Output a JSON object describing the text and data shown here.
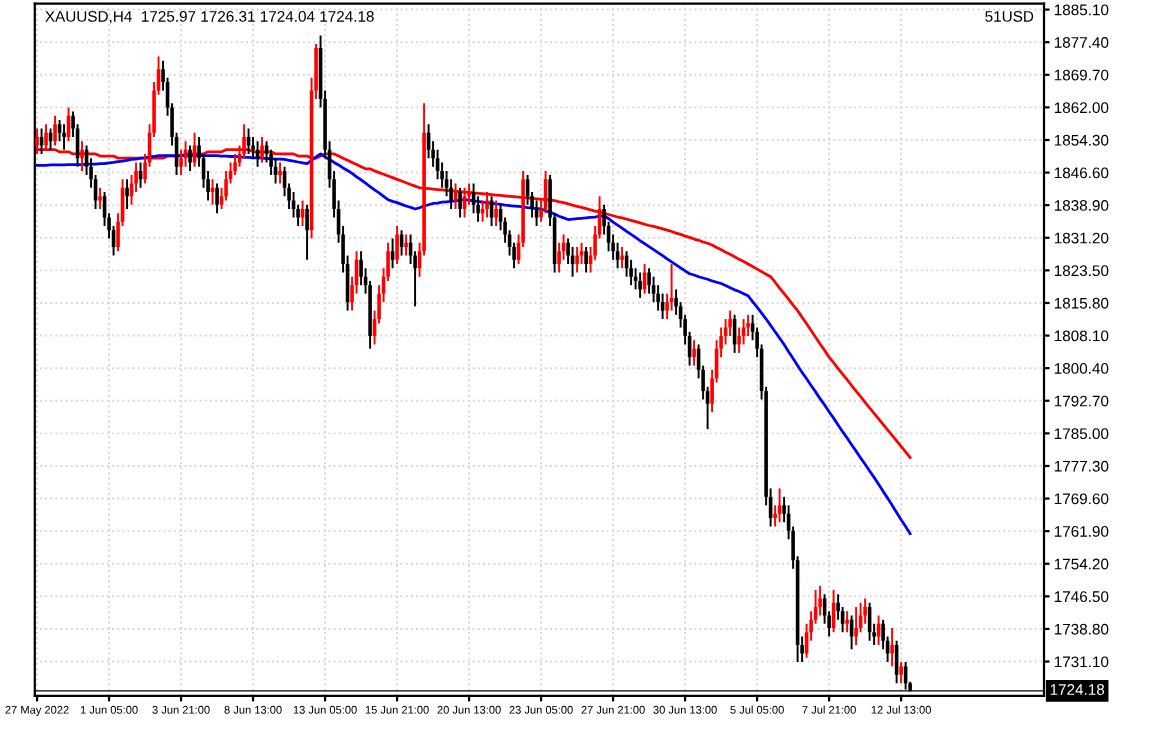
{
  "chart_data": {
    "type": "candlestick",
    "title": "XAUUSD,H4  1725.97 1726.31 1724.04 1724.18",
    "annotations": [
      "51USD"
    ],
    "categories": [
      "27 May 2022",
      null,
      null,
      null,
      null,
      null,
      null,
      null,
      null,
      null,
      null,
      null,
      null,
      null,
      null,
      null,
      "1 Jun 05:00",
      null,
      null,
      null,
      null,
      null,
      null,
      null,
      null,
      null,
      null,
      null,
      null,
      null,
      null,
      null,
      "3 Jun 21:00",
      null,
      null,
      null,
      null,
      null,
      null,
      null,
      null,
      null,
      null,
      null,
      null,
      null,
      null,
      null,
      "8 Jun 13:00",
      null,
      null,
      null,
      null,
      null,
      null,
      null,
      null,
      null,
      null,
      null,
      null,
      null,
      null,
      null,
      "13 Jun 05:00",
      null,
      null,
      null,
      null,
      null,
      null,
      null,
      null,
      null,
      null,
      null,
      null,
      null,
      null,
      null,
      "15 Jun 21:00",
      null,
      null,
      null,
      null,
      null,
      null,
      null,
      null,
      null,
      null,
      null,
      null,
      null,
      null,
      null,
      "20 Jun 13:00",
      null,
      null,
      null,
      null,
      null,
      null,
      null,
      null,
      null,
      null,
      null,
      null,
      null,
      null,
      null,
      "23 Jun 05:00",
      null,
      null,
      null,
      null,
      null,
      null,
      null,
      null,
      null,
      null,
      null,
      null,
      null,
      null,
      null,
      "27 Jun 21:00",
      null,
      null,
      null,
      null,
      null,
      null,
      null,
      null,
      null,
      null,
      null,
      null,
      null,
      null,
      null,
      "30 Jun 13:00",
      null,
      null,
      null,
      null,
      null,
      null,
      null,
      null,
      null,
      null,
      null,
      null,
      null,
      null,
      null,
      "5 Jul 05:00",
      null,
      null,
      null,
      null,
      null,
      null,
      null,
      null,
      null,
      null,
      null,
      null,
      null,
      null,
      null,
      "7 Jul 21:00",
      null,
      null,
      null,
      null,
      null,
      null,
      null,
      null,
      null,
      null,
      null,
      null,
      null,
      null,
      null,
      "12 Jul 13:00",
      null,
      null
    ],
    "series": [
      {
        "colors": [
          "#ff0000",
          "#000000",
          "#ff0000",
          "#000000",
          "#ff0000",
          "#000000",
          "#000000",
          "#ff0000",
          "#000000",
          "#000000",
          "#ff0000",
          "#000000",
          "#000000",
          "#000000",
          "#ff0000",
          "#000000",
          "#000000",
          "#000000",
          "#ff0000",
          "#ff0000",
          "#000000",
          "#ff0000",
          "#ff0000",
          "#000000",
          "#ff0000",
          "#ff0000",
          "#ff0000",
          "#ff0000",
          "#000000",
          "#000000",
          "#000000",
          "#000000",
          "#ff0000",
          "#ff0000",
          "#000000",
          "#ff0000",
          "#000000",
          "#000000",
          "#000000",
          "#ff0000",
          "#000000",
          "#ff0000",
          "#ff0000",
          "#ff0000",
          "#ff0000",
          "#ff0000",
          "#ff0000",
          "#000000",
          "#000000",
          "#000000",
          "#ff0000",
          "#000000",
          "#000000",
          "#000000",
          "#ff0000",
          "#000000",
          "#000000",
          "#000000",
          "#000000",
          "#ff0000",
          "#000000",
          "#ff0000",
          "#ff0000",
          "#000000",
          "#000000",
          "#000000",
          "#000000",
          "#000000",
          "#000000",
          "#000000",
          "#ff0000",
          "#ff0000",
          "#000000",
          "#000000",
          "#000000",
          "#ff0000",
          "#ff0000",
          "#ff0000",
          "#ff0000",
          "#000000",
          "#ff0000",
          "#000000",
          "#ff0000",
          "#000000",
          "#000000",
          "#ff0000",
          "#ff0000",
          "#000000",
          "#000000",
          "#000000",
          "#000000",
          "#000000",
          "#000000",
          "#ff0000",
          "#000000",
          "#ff0000",
          "#ff0000",
          "#000000",
          "#000000",
          "#ff0000",
          "#ff0000",
          "#000000",
          "#ff0000",
          "#000000",
          "#000000",
          "#000000",
          "#000000",
          "#ff0000",
          "#ff0000",
          "#000000",
          "#000000",
          "#000000",
          "#ff0000",
          "#ff0000",
          "#000000",
          "#000000",
          "#ff0000",
          "#ff0000",
          "#000000",
          "#000000",
          "#ff0000",
          "#ff0000",
          "#000000",
          "#ff0000",
          "#ff0000",
          "#ff0000",
          "#000000",
          "#000000",
          "#000000",
          "#000000",
          "#ff0000",
          "#000000",
          "#000000",
          "#000000",
          "#000000",
          "#ff0000",
          "#000000",
          "#000000",
          "#000000",
          "#000000",
          "#ff0000",
          "#ff0000",
          "#000000",
          "#000000",
          "#000000",
          "#000000",
          "#ff0000",
          "#000000",
          "#000000",
          "#000000",
          "#ff0000",
          "#ff0000",
          "#ff0000",
          "#ff0000",
          "#ff0000",
          "#000000",
          "#ff0000",
          "#ff0000",
          "#ff0000",
          "#000000",
          "#000000",
          "#000000",
          "#000000",
          "#000000",
          "#ff0000",
          "#ff0000",
          "#000000",
          "#000000",
          "#000000",
          "#000000",
          "#000000",
          "#ff0000",
          "#ff0000",
          "#ff0000",
          "#ff0000",
          "#000000",
          "#000000",
          "#ff0000",
          "#000000",
          "#000000",
          "#ff0000",
          "#000000",
          "#ff0000",
          "#ff0000",
          "#ff0000",
          "#000000",
          "#000000",
          "#ff0000",
          "#000000",
          "#000000",
          "#ff0000",
          "#000000",
          "#ff0000",
          "#000000",
          "#000000"
        ],
        "ohlc": [
          [
            1853,
            1857,
            1851,
            1855
          ],
          [
            1855,
            1857,
            1851,
            1853
          ],
          [
            1853,
            1858,
            1852,
            1856
          ],
          [
            1856,
            1857,
            1852,
            1854
          ],
          [
            1854,
            1860,
            1853,
            1858
          ],
          [
            1858,
            1859,
            1854,
            1856
          ],
          [
            1856,
            1858,
            1852,
            1855
          ],
          [
            1855,
            1862,
            1854,
            1860
          ],
          [
            1860,
            1861,
            1855,
            1857
          ],
          [
            1857,
            1858,
            1848,
            1850
          ],
          [
            1850,
            1854,
            1847,
            1852
          ],
          [
            1852,
            1853,
            1846,
            1848
          ],
          [
            1848,
            1850,
            1843,
            1845
          ],
          [
            1845,
            1846,
            1838,
            1840
          ],
          [
            1840,
            1843,
            1838,
            1841
          ],
          [
            1841,
            1842,
            1834,
            1836
          ],
          [
            1836,
            1837,
            1831,
            1833
          ],
          [
            1833,
            1834,
            1827,
            1829
          ],
          [
            1829,
            1837,
            1828,
            1835
          ],
          [
            1835,
            1845,
            1834,
            1843
          ],
          [
            1843,
            1845,
            1838,
            1841
          ],
          [
            1841,
            1846,
            1839,
            1844
          ],
          [
            1844,
            1849,
            1842,
            1847
          ],
          [
            1847,
            1849,
            1843,
            1845
          ],
          [
            1845,
            1851,
            1844,
            1849
          ],
          [
            1849,
            1858,
            1848,
            1856
          ],
          [
            1856,
            1868,
            1855,
            1866
          ],
          [
            1866,
            1874,
            1865,
            1871
          ],
          [
            1871,
            1873,
            1866,
            1868
          ],
          [
            1868,
            1869,
            1860,
            1862
          ],
          [
            1862,
            1863,
            1853,
            1855
          ],
          [
            1855,
            1856,
            1846,
            1848
          ],
          [
            1848,
            1852,
            1846,
            1850
          ],
          [
            1850,
            1854,
            1848,
            1852
          ],
          [
            1852,
            1853,
            1847,
            1849
          ],
          [
            1849,
            1856,
            1848,
            1853
          ],
          [
            1853,
            1855,
            1848,
            1850
          ],
          [
            1850,
            1851,
            1843,
            1845
          ],
          [
            1845,
            1847,
            1840,
            1842
          ],
          [
            1842,
            1845,
            1839,
            1843
          ],
          [
            1843,
            1844,
            1837,
            1839
          ],
          [
            1839,
            1843,
            1838,
            1841
          ],
          [
            1841,
            1847,
            1840,
            1845
          ],
          [
            1845,
            1849,
            1844,
            1847
          ],
          [
            1847,
            1851,
            1846,
            1849
          ],
          [
            1849,
            1853,
            1848,
            1851
          ],
          [
            1851,
            1858,
            1850,
            1855
          ],
          [
            1855,
            1857,
            1851,
            1853
          ],
          [
            1853,
            1855,
            1850,
            1852
          ],
          [
            1852,
            1854,
            1848,
            1850
          ],
          [
            1850,
            1855,
            1849,
            1853
          ],
          [
            1853,
            1854,
            1849,
            1851
          ],
          [
            1851,
            1852,
            1846,
            1848
          ],
          [
            1848,
            1850,
            1844,
            1846
          ],
          [
            1846,
            1849,
            1844,
            1847
          ],
          [
            1847,
            1848,
            1841,
            1843
          ],
          [
            1843,
            1844,
            1838,
            1840
          ],
          [
            1840,
            1842,
            1836,
            1838
          ],
          [
            1838,
            1839,
            1834,
            1836
          ],
          [
            1836,
            1840,
            1834,
            1838
          ],
          [
            1838,
            1839,
            1826,
            1833
          ],
          [
            1833,
            1869,
            1831,
            1866
          ],
          [
            1866,
            1877,
            1864,
            1876
          ],
          [
            1876,
            1879,
            1862,
            1864
          ],
          [
            1864,
            1866,
            1850,
            1852
          ],
          [
            1852,
            1854,
            1843,
            1845
          ],
          [
            1845,
            1847,
            1836,
            1838
          ],
          [
            1838,
            1840,
            1830,
            1832
          ],
          [
            1832,
            1834,
            1823,
            1825
          ],
          [
            1825,
            1827,
            1814,
            1816
          ],
          [
            1816,
            1822,
            1814,
            1820
          ],
          [
            1820,
            1828,
            1818,
            1826
          ],
          [
            1826,
            1828,
            1820,
            1822
          ],
          [
            1822,
            1824,
            1818,
            1820
          ],
          [
            1820,
            1821,
            1805,
            1808
          ],
          [
            1808,
            1814,
            1806,
            1812
          ],
          [
            1812,
            1820,
            1811,
            1818
          ],
          [
            1818,
            1824,
            1816,
            1822
          ],
          [
            1822,
            1830,
            1821,
            1828
          ],
          [
            1828,
            1831,
            1824,
            1826
          ],
          [
            1826,
            1834,
            1825,
            1832
          ],
          [
            1832,
            1833,
            1827,
            1829
          ],
          [
            1829,
            1832,
            1827,
            1830
          ],
          [
            1830,
            1832,
            1825,
            1827
          ],
          [
            1827,
            1828,
            1815,
            1824
          ],
          [
            1824,
            1830,
            1822,
            1828
          ],
          [
            1828,
            1863,
            1827,
            1856
          ],
          [
            1856,
            1858,
            1850,
            1852
          ],
          [
            1852,
            1854,
            1848,
            1850
          ],
          [
            1850,
            1852,
            1845,
            1847
          ],
          [
            1847,
            1849,
            1843,
            1845
          ],
          [
            1845,
            1847,
            1841,
            1843
          ],
          [
            1843,
            1845,
            1838,
            1840
          ],
          [
            1840,
            1844,
            1838,
            1842
          ],
          [
            1842,
            1843,
            1836,
            1838
          ],
          [
            1838,
            1843,
            1836,
            1841
          ],
          [
            1841,
            1844,
            1839,
            1842
          ],
          [
            1842,
            1844,
            1837,
            1839
          ],
          [
            1839,
            1841,
            1835,
            1837
          ],
          [
            1837,
            1840,
            1835,
            1838
          ],
          [
            1838,
            1842,
            1836,
            1840
          ],
          [
            1840,
            1841,
            1834,
            1836
          ],
          [
            1836,
            1840,
            1834,
            1838
          ],
          [
            1838,
            1839,
            1833,
            1835
          ],
          [
            1835,
            1836,
            1830,
            1832
          ],
          [
            1832,
            1833,
            1827,
            1829
          ],
          [
            1829,
            1830,
            1824,
            1826
          ],
          [
            1826,
            1832,
            1825,
            1830
          ],
          [
            1830,
            1847,
            1829,
            1845
          ],
          [
            1845,
            1846,
            1839,
            1841
          ],
          [
            1841,
            1842,
            1836,
            1838
          ],
          [
            1838,
            1840,
            1834,
            1836
          ],
          [
            1836,
            1840,
            1835,
            1838
          ],
          [
            1838,
            1847,
            1837,
            1845
          ],
          [
            1845,
            1846,
            1834,
            1836
          ],
          [
            1836,
            1837,
            1823,
            1825
          ],
          [
            1825,
            1830,
            1823,
            1828
          ],
          [
            1828,
            1832,
            1826,
            1830
          ],
          [
            1830,
            1831,
            1825,
            1827
          ],
          [
            1827,
            1829,
            1822,
            1825
          ],
          [
            1825,
            1829,
            1823,
            1827
          ],
          [
            1827,
            1830,
            1825,
            1828
          ],
          [
            1828,
            1829,
            1823,
            1825
          ],
          [
            1825,
            1829,
            1823,
            1827
          ],
          [
            1827,
            1834,
            1826,
            1832
          ],
          [
            1832,
            1841,
            1831,
            1838
          ],
          [
            1838,
            1839,
            1832,
            1834
          ],
          [
            1834,
            1835,
            1828,
            1830
          ],
          [
            1830,
            1832,
            1826,
            1828
          ],
          [
            1828,
            1830,
            1824,
            1826
          ],
          [
            1826,
            1829,
            1824,
            1827
          ],
          [
            1827,
            1828,
            1822,
            1824
          ],
          [
            1824,
            1826,
            1820,
            1822
          ],
          [
            1822,
            1824,
            1819,
            1821
          ],
          [
            1821,
            1823,
            1817,
            1819
          ],
          [
            1819,
            1825,
            1818,
            1823
          ],
          [
            1823,
            1824,
            1818,
            1820
          ],
          [
            1820,
            1822,
            1816,
            1818
          ],
          [
            1818,
            1820,
            1814,
            1816
          ],
          [
            1816,
            1818,
            1812,
            1814
          ],
          [
            1814,
            1818,
            1812,
            1816
          ],
          [
            1816,
            1825,
            1814,
            1817
          ],
          [
            1817,
            1819,
            1813,
            1815
          ],
          [
            1815,
            1816,
            1810,
            1812
          ],
          [
            1812,
            1813,
            1806,
            1808
          ],
          [
            1808,
            1809,
            1801,
            1803
          ],
          [
            1803,
            1807,
            1801,
            1805
          ],
          [
            1805,
            1806,
            1798,
            1800
          ],
          [
            1800,
            1801,
            1793,
            1795
          ],
          [
            1795,
            1796,
            1786,
            1792
          ],
          [
            1792,
            1800,
            1790,
            1798
          ],
          [
            1798,
            1807,
            1797,
            1805
          ],
          [
            1805,
            1810,
            1803,
            1808
          ],
          [
            1808,
            1812,
            1806,
            1810
          ],
          [
            1810,
            1814,
            1808,
            1812
          ],
          [
            1812,
            1813,
            1804,
            1806
          ],
          [
            1806,
            1810,
            1804,
            1808
          ],
          [
            1808,
            1812,
            1806,
            1810
          ],
          [
            1810,
            1813,
            1808,
            1811
          ],
          [
            1811,
            1813,
            1807,
            1809
          ],
          [
            1809,
            1810,
            1803,
            1805
          ],
          [
            1805,
            1806,
            1793,
            1795
          ],
          [
            1795,
            1796,
            1768,
            1770
          ],
          [
            1770,
            1772,
            1763,
            1765
          ],
          [
            1765,
            1768,
            1763,
            1766
          ],
          [
            1766,
            1772,
            1764,
            1768
          ],
          [
            1768,
            1770,
            1764,
            1766
          ],
          [
            1766,
            1768,
            1760,
            1762
          ],
          [
            1762,
            1763,
            1753,
            1755
          ],
          [
            1755,
            1756,
            1731,
            1735
          ],
          [
            1735,
            1737,
            1731,
            1733
          ],
          [
            1733,
            1740,
            1732,
            1738
          ],
          [
            1738,
            1743,
            1736,
            1741
          ],
          [
            1741,
            1748,
            1740,
            1744
          ],
          [
            1744,
            1749,
            1742,
            1746
          ],
          [
            1746,
            1747,
            1740,
            1742
          ],
          [
            1742,
            1743,
            1737,
            1739
          ],
          [
            1739,
            1748,
            1738,
            1745
          ],
          [
            1745,
            1747,
            1741,
            1743
          ],
          [
            1743,
            1744,
            1738,
            1740
          ],
          [
            1740,
            1743,
            1738,
            1741
          ],
          [
            1741,
            1742,
            1734,
            1737
          ],
          [
            1737,
            1744,
            1735,
            1739
          ],
          [
            1739,
            1745,
            1738,
            1742
          ],
          [
            1742,
            1746,
            1740,
            1744
          ],
          [
            1744,
            1745,
            1736,
            1738
          ],
          [
            1738,
            1740,
            1735,
            1737
          ],
          [
            1737,
            1742,
            1735,
            1740
          ],
          [
            1740,
            1741,
            1734,
            1736
          ],
          [
            1736,
            1737,
            1731,
            1733
          ],
          [
            1733,
            1739,
            1730,
            1735
          ],
          [
            1735,
            1736,
            1726,
            1728
          ],
          [
            1728,
            1731,
            1726,
            1730
          ],
          [
            1730,
            1731,
            1724.5,
            1726
          ],
          [
            1725.97,
            1726.31,
            1724.04,
            1724.18
          ]
        ]
      },
      {
        "type": "line",
        "color": "#ff0000",
        "values": [
          1852,
          1852,
          1852,
          1852,
          1852,
          1851.5,
          1851.5,
          1851.5,
          1851,
          1851,
          1851,
          1851,
          1851,
          1851,
          1850.5,
          1850.5,
          1850.5,
          1850.5,
          1850,
          1850,
          1850,
          1850,
          1850,
          1850,
          1850,
          1850,
          1850,
          1850,
          1850,
          1850.5,
          1850.5,
          1850.5,
          1850.5,
          1851,
          1851,
          1851,
          1851,
          1851,
          1851.5,
          1851.5,
          1851.5,
          1851.5,
          1852,
          1852,
          1852,
          1852,
          1852,
          1852,
          1851.5,
          1851.5,
          1851.5,
          1851.5,
          1851.5,
          1851,
          1851,
          1851,
          1851,
          1851,
          1850.5,
          1850.5,
          1850.5,
          1850,
          1850,
          1850.5,
          1851,
          1851,
          1851,
          1850.5,
          1850,
          1849.5,
          1849,
          1848.5,
          1848,
          1847.5,
          1847.5,
          1847,
          1846.6,
          1846.2,
          1845.8,
          1845.4,
          1845,
          1844.6,
          1844.2,
          1843.8,
          1843.4,
          1843,
          1842.9,
          1842.8,
          1842.7,
          1842.6,
          1842.5,
          1842.4,
          1842.3,
          1842.2,
          1842.1,
          1842,
          1841.9,
          1841.8,
          1841.7,
          1841.6,
          1841.5,
          1841.4,
          1841.3,
          1841.2,
          1841.1,
          1841,
          1840.9,
          1840.8,
          1840.7,
          1840.6,
          1840.5,
          1840.4,
          1840.3,
          1840.2,
          1840.1,
          1840,
          1839.7,
          1839.5,
          1839.2,
          1838.9,
          1838.6,
          1838.4,
          1838.1,
          1837.8,
          1837.5,
          1837.3,
          1837,
          1836.7,
          1836.4,
          1836.1,
          1835.9,
          1835.6,
          1835.3,
          1835,
          1834.7,
          1834.4,
          1834.1,
          1833.9,
          1833.6,
          1833.3,
          1833,
          1832.7,
          1832.3,
          1832,
          1831.6,
          1831.3,
          1830.9,
          1830.6,
          1830.2,
          1829.9,
          1829.5,
          1828.9,
          1828.4,
          1827.8,
          1827.3,
          1826.7,
          1826.1,
          1825.6,
          1825,
          1824.4,
          1823.8,
          1823.2,
          1822.6,
          1822,
          1820.7,
          1819.3,
          1818,
          1816.7,
          1815.3,
          1814,
          1812.4,
          1810.9,
          1809.3,
          1807.7,
          1806.1,
          1804.6,
          1803,
          1801.7,
          1800.3,
          1799,
          1797.7,
          1796.3,
          1795,
          1793.7,
          1792.3,
          1791,
          1789.7,
          1788.4,
          1787.1,
          1785.8,
          1784.5,
          1783.2,
          1781.9,
          1780.6,
          1779.3
        ]
      },
      {
        "type": "line",
        "color": "#0000ff",
        "values": [
          1848.3,
          1848.3,
          1848.3,
          1848.4,
          1848.4,
          1848.4,
          1848.4,
          1848.5,
          1848.5,
          1848.5,
          1848.5,
          1848.6,
          1848.6,
          1848.6,
          1848.7,
          1848.7,
          1848.9,
          1849,
          1849.2,
          1849.3,
          1849.5,
          1849.7,
          1849.8,
          1850,
          1850.1,
          1850.3,
          1850.4,
          1850.6,
          1850.6,
          1850.6,
          1850.6,
          1850.6,
          1850.6,
          1850.6,
          1850.6,
          1850.6,
          1850.6,
          1850.6,
          1850.6,
          1850.6,
          1850.6,
          1850.5,
          1850.5,
          1850.4,
          1850.4,
          1850.3,
          1850.2,
          1850.2,
          1850.1,
          1850.1,
          1850,
          1849.9,
          1849.9,
          1849.8,
          1849.8,
          1849.7,
          1849.5,
          1849.3,
          1849.1,
          1848.9,
          1848.7,
          1849.5,
          1850.3,
          1851,
          1850.3,
          1849.7,
          1849,
          1848.4,
          1847.7,
          1847.1,
          1846.4,
          1845.6,
          1844.9,
          1844.1,
          1843.3,
          1842.5,
          1841.8,
          1841,
          1840.2,
          1839.8,
          1839.5,
          1839.1,
          1838.7,
          1838.4,
          1838,
          1838.3,
          1838.7,
          1839,
          1839.3,
          1839.4,
          1839.6,
          1839.7,
          1839.8,
          1839.9,
          1840.1,
          1840.2,
          1840.1,
          1839.9,
          1839.8,
          1839.6,
          1839.5,
          1839.4,
          1839.2,
          1839.1,
          1838.9,
          1838.8,
          1838.7,
          1838.6,
          1838.5,
          1838.3,
          1838.2,
          1838.1,
          1838,
          1837.6,
          1837.2,
          1836.8,
          1836.3,
          1835.9,
          1835.5,
          1835.6,
          1835.7,
          1835.8,
          1835.9,
          1836,
          1836.1,
          1836.3,
          1836.4,
          1835.7,
          1834.9,
          1834.2,
          1833.5,
          1832.7,
          1832,
          1831.3,
          1830.5,
          1829.8,
          1829.1,
          1828.4,
          1827.7,
          1827,
          1826.2,
          1825.5,
          1824.8,
          1824.1,
          1823.4,
          1822.7,
          1822.4,
          1822,
          1821.7,
          1821.4,
          1821,
          1820.7,
          1820.4,
          1819.9,
          1819.4,
          1818.9,
          1818.5,
          1818,
          1817.5,
          1816.1,
          1814.8,
          1813.4,
          1812,
          1810.5,
          1809,
          1807.5,
          1806,
          1804.3,
          1802.7,
          1801,
          1799.4,
          1797.9,
          1796.3,
          1794.8,
          1793.2,
          1791.7,
          1790.1,
          1788.6,
          1787,
          1785.4,
          1783.9,
          1782.3,
          1780.8,
          1779.2,
          1777.7,
          1776.1,
          1774.6,
          1773,
          1771.3,
          1769.7,
          1768,
          1766.3,
          1764.6,
          1763,
          1761.3
        ]
      }
    ],
    "ylim": [
      1723.0,
      1886.5
    ],
    "yticks": [
      {
        "value": 1885.1,
        "label": "1885.10"
      },
      {
        "value": 1877.4,
        "label": "1877.40"
      },
      {
        "value": 1869.7,
        "label": "1869.70"
      },
      {
        "value": 1862.0,
        "label": "1862.00"
      },
      {
        "value": 1854.3,
        "label": "1854.30"
      },
      {
        "value": 1846.6,
        "label": "1846.60"
      },
      {
        "value": 1838.9,
        "label": "1838.90"
      },
      {
        "value": 1831.2,
        "label": "1831.20"
      },
      {
        "value": 1823.5,
        "label": "1823.50"
      },
      {
        "value": 1815.8,
        "label": "1815.80"
      },
      {
        "value": 1808.1,
        "label": "1808.10"
      },
      {
        "value": 1800.4,
        "label": "1800.40"
      },
      {
        "value": 1792.7,
        "label": "1792.70"
      },
      {
        "value": 1785.0,
        "label": "1785.00"
      },
      {
        "value": 1777.3,
        "label": "1777.30"
      },
      {
        "value": 1769.6,
        "label": "1769.60"
      },
      {
        "value": 1761.9,
        "label": "1761.90"
      },
      {
        "value": 1754.2,
        "label": "1754.20"
      },
      {
        "value": 1746.5,
        "label": "1746.50"
      },
      {
        "value": 1738.8,
        "label": "1738.80"
      },
      {
        "value": 1731.1,
        "label": "1731.10"
      }
    ],
    "ref_lines": [
      {
        "axis": "y",
        "value": 1724.18,
        "label": "1724.18",
        "color": "#000000"
      }
    ],
    "grid": true
  }
}
